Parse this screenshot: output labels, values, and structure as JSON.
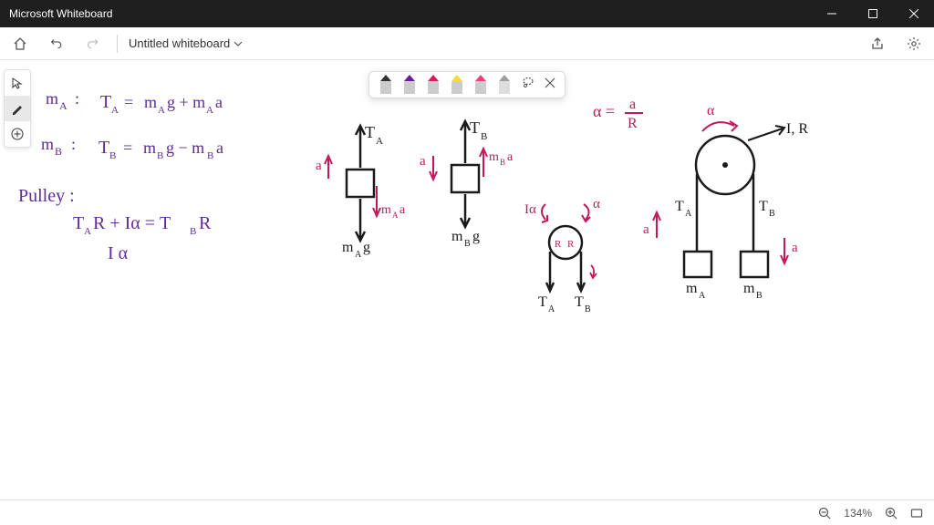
{
  "window": {
    "title": "Microsoft Whiteboard"
  },
  "toolbar": {
    "doc_title": "Untitled whiteboard"
  },
  "pen_tray": {
    "pens": [
      {
        "tip": "#333333",
        "body": "#cccccc"
      },
      {
        "tip": "#6a1b9a",
        "body": "#cccccc"
      },
      {
        "tip": "#d81b60",
        "body": "#cccccc"
      },
      {
        "tip": "#fdd835",
        "body": "#cccccc"
      },
      {
        "tip": "#ec407a",
        "body": "#cccccc"
      },
      {
        "tip": "#9e9e9e",
        "body": "#dddddd"
      }
    ]
  },
  "colors": {
    "purple": "#5e2b97",
    "black": "#1a1a1a",
    "pink": "#c2185b"
  },
  "equations": {
    "ma_label": "m",
    "ma_sub": "A",
    "ma_eq": "T  =  m g + m a",
    "ma_A": "A",
    "mb_label": "m",
    "mb_sub": "B",
    "mb_eq": "T  =  m g − m a",
    "mb_B": "B",
    "pulley_label": "Pulley :",
    "pulley_eq": "T R + Iα = T R",
    "pulley_A": "A",
    "pulley_B": "B",
    "pulley_eq2": "I α",
    "alpha_eq": "α = a",
    "alpha_R": "R",
    "fbd_TA": "T",
    "fbd_TA_sub": "A",
    "fbd_TB": "T",
    "fbd_TB_sub": "B",
    "fbd_a": "a",
    "fbd_maa": "m a",
    "fbd_maa_sub": "A",
    "fbd_mag": "m g",
    "fbd_mag_sub": "A",
    "fbd_mba": "m a",
    "fbd_mba_sub": "B",
    "fbd_mbg": "m g",
    "fbd_mbg_sub": "B",
    "small_Ia": "Iα",
    "small_alpha": "α",
    "small_R": "R",
    "small_TA": "T",
    "small_TA_sub": "A",
    "small_TB": "T",
    "small_TB_sub": "B",
    "big_alpha": "α",
    "big_IR": "I, R",
    "big_TA": "T",
    "big_TA_sub": "A",
    "big_TB": "T",
    "big_TB_sub": "B",
    "big_a_up": "a",
    "big_a_dn": "a",
    "big_mA": "m",
    "big_mA_sub": "A",
    "big_mB": "m",
    "big_mB_sub": "B"
  },
  "statusbar": {
    "zoom": "134%"
  }
}
